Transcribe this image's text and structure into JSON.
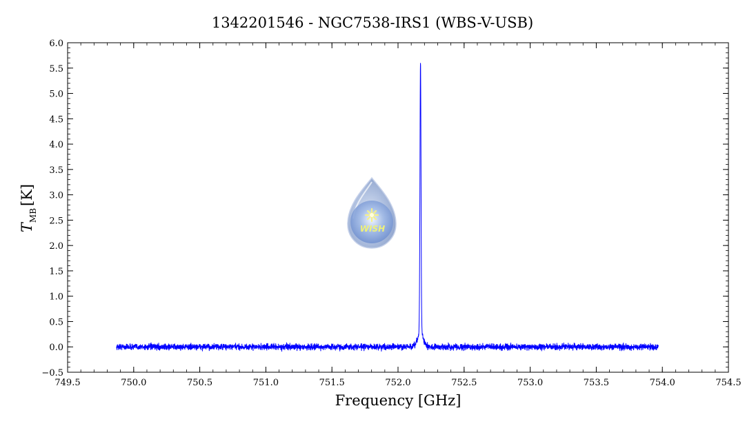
{
  "chart_data": {
    "type": "line",
    "title": "1342201546 - NGC7538-IRS1 (WBS-V-USB)",
    "xlabel": "Frequency [GHz]",
    "ylabel": {
      "symbol": "T",
      "subscript": "MB",
      "unit": "[K]"
    },
    "xlim": [
      749.5,
      754.5
    ],
    "ylim": [
      -0.5,
      6.0
    ],
    "x_ticks": [
      749.5,
      750.0,
      750.5,
      751.0,
      751.5,
      752.0,
      752.5,
      753.0,
      753.5,
      754.0,
      754.5
    ],
    "x_tick_labels": [
      "749.5",
      "750.0",
      "750.5",
      "751.0",
      "751.5",
      "752.0",
      "752.5",
      "753.0",
      "753.5",
      "754.0",
      "754.5"
    ],
    "y_ticks": [
      -0.5,
      0.0,
      0.5,
      1.0,
      1.5,
      2.0,
      2.5,
      3.0,
      3.5,
      4.0,
      4.5,
      5.0,
      5.5,
      6.0
    ],
    "y_tick_labels": [
      "−0.5",
      "0.0",
      "0.5",
      "1.0",
      "1.5",
      "2.0",
      "2.5",
      "3.0",
      "3.5",
      "4.0",
      "4.5",
      "5.0",
      "5.5",
      "6.0"
    ],
    "grid": false,
    "series": [
      {
        "color": "#0000ff",
        "x_range": [
          749.87,
          753.97
        ],
        "noise_amplitude": 0.08,
        "baseline": 0.0,
        "peak": {
          "center": 752.17,
          "height": 5.35,
          "width": 0.004,
          "wing_height": 0.3,
          "wing_width": 0.02
        }
      }
    ],
    "logo": {
      "label": "WISH",
      "icon": "wish-droplet-logo"
    }
  }
}
